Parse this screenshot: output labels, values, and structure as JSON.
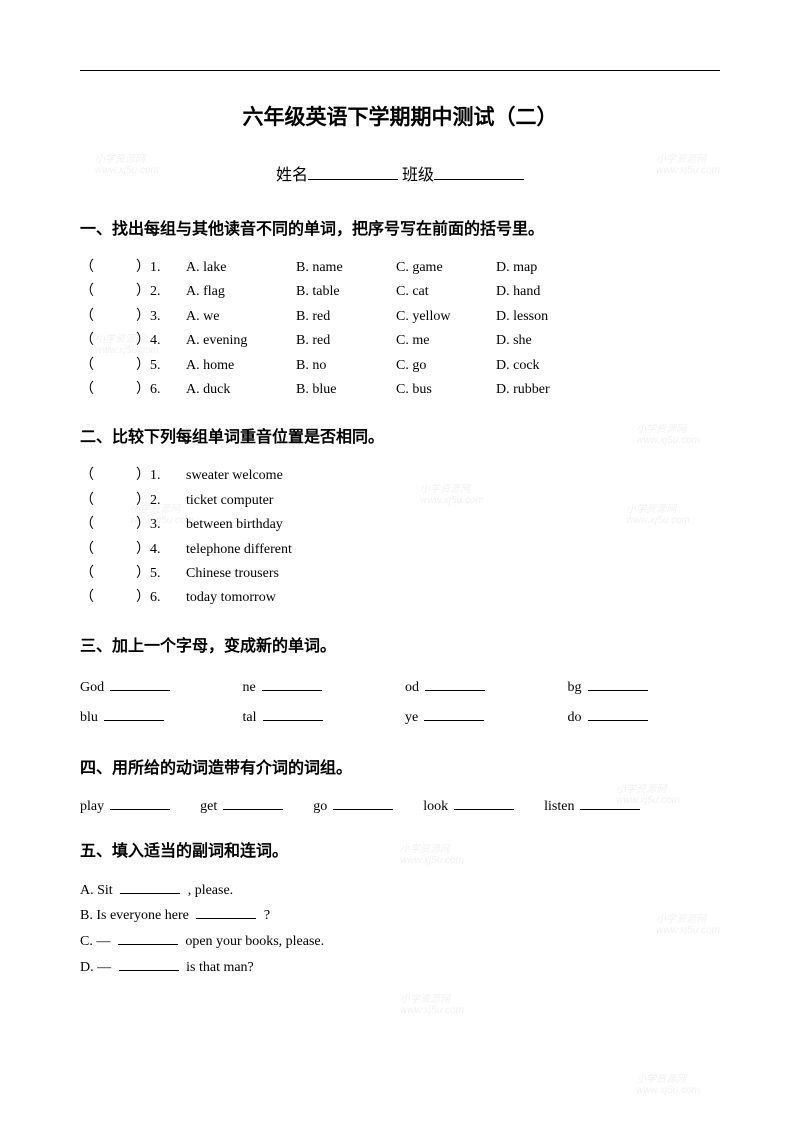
{
  "title": "六年级英语下学期期中测试（二）",
  "nameRow": {
    "name": "姓名",
    "class": "班级"
  },
  "section1": {
    "heading": "一、找出每组与其他读音不同的单词，把序号写在前面的括号里。",
    "rows": [
      {
        "paren": "（　　　）",
        "num": "1.",
        "a": "A. lake",
        "b": "B. name",
        "c": "C. game",
        "d": "D. map"
      },
      {
        "paren": "（　　　）",
        "num": "2.",
        "a": "A. flag",
        "b": "B. table",
        "c": "C. cat",
        "d": "D. hand"
      },
      {
        "paren": "（　　　）",
        "num": "3.",
        "a": "A. we",
        "b": "B. red",
        "c": "C. yellow",
        "d": "D. lesson"
      },
      {
        "paren": "（　　　）",
        "num": "4.",
        "a": "A. evening",
        "b": "B. red",
        "c": "C. me",
        "d": "D. she"
      },
      {
        "paren": "（　　　）",
        "num": "5.",
        "a": "A. home",
        "b": "B. no",
        "c": "C. go",
        "d": "D. cock"
      },
      {
        "paren": "（　　　）",
        "num": "6.",
        "a": "A. duck",
        "b": "B. blue",
        "c": "C. bus",
        "d": "D. rubber"
      }
    ]
  },
  "section2": {
    "heading": "二、比较下列每组单词重音位置是否相同。",
    "rows": [
      {
        "paren": "（　　　）",
        "num": "1.",
        "text": "sweater welcome"
      },
      {
        "paren": "（　　　）",
        "num": "2.",
        "text": "ticket computer"
      },
      {
        "paren": "（　　　）",
        "num": "3.",
        "text": "between birthday"
      },
      {
        "paren": "（　　　）",
        "num": "4.",
        "text": "telephone different"
      },
      {
        "paren": "（　　　）",
        "num": "5.",
        "text": "Chinese trousers"
      },
      {
        "paren": "（　　　）",
        "num": "6.",
        "text": "today tomorrow"
      }
    ]
  },
  "section3": {
    "heading": "三、加上一个字母，变成新的单词。",
    "row1": [
      "God",
      "ne",
      "od",
      "bg"
    ],
    "row2": [
      "blu",
      "tal",
      "ye",
      "do"
    ]
  },
  "section4": {
    "heading": "四、用所给的动词造带有介词的词组。",
    "items": [
      "play",
      "get",
      "go",
      "look",
      "listen"
    ]
  },
  "section5": {
    "heading": "五、填入适当的副词和连词。",
    "rows": [
      {
        "prefix": "A. Sit ",
        "suffix": " , please."
      },
      {
        "prefix": "B. Is everyone here ",
        "suffix": " ?"
      },
      {
        "prefix": "C. — ",
        "suffix": " open your books, please."
      },
      {
        "prefix": "D. — ",
        "suffix": " is that man?"
      }
    ]
  },
  "watermark": {
    "text1": "小学资源网",
    "text2": "www.xj5u.com"
  }
}
